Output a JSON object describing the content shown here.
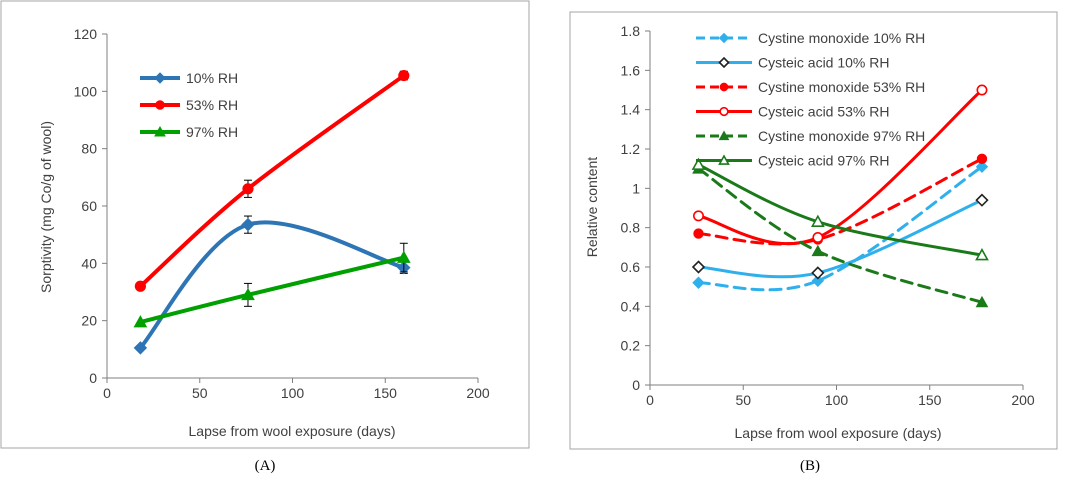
{
  "chart_data": [
    {
      "type": "line",
      "panel_label": "(A)",
      "xlabel": "Lapse from wool exposure (days)",
      "ylabel": "Sorptivity (mg Co/g of wool)",
      "xlim": [
        0,
        200
      ],
      "ylim": [
        0,
        120
      ],
      "xticks": [
        0,
        50,
        100,
        150,
        200
      ],
      "yticks": [
        0,
        20,
        40,
        60,
        80,
        100,
        120
      ],
      "series": [
        {
          "name": "10% RH",
          "color": "#2e75b6",
          "marker": "diamond",
          "x": [
            18,
            76,
            160
          ],
          "y": [
            10.5,
            53.5,
            38.5
          ],
          "err": [
            0,
            3,
            2
          ]
        },
        {
          "name": "53% RH",
          "color": "#ff0000",
          "marker": "circle",
          "x": [
            18,
            76,
            160
          ],
          "y": [
            32,
            66,
            105.5
          ],
          "err": [
            0,
            3,
            1.5
          ]
        },
        {
          "name": "97% RH",
          "color": "#00a000",
          "marker": "triangle",
          "x": [
            18,
            76,
            160
          ],
          "y": [
            19.5,
            29,
            42
          ],
          "err": [
            0,
            4,
            5
          ]
        }
      ]
    },
    {
      "type": "line",
      "panel_label": "(B)",
      "xlabel": "Lapse from wool exposure (days)",
      "ylabel": "Relative content",
      "xlim": [
        0,
        200
      ],
      "ylim": [
        0,
        1.8
      ],
      "xticks": [
        0,
        50,
        100,
        150,
        200
      ],
      "yticks": [
        0,
        0.2,
        0.4,
        0.6,
        0.8,
        1,
        1.2,
        1.4,
        1.6,
        1.8
      ],
      "series": [
        {
          "name": "Cystine monoxide 10% RH",
          "color": "#2fb0ec",
          "dashed": true,
          "marker": "diamond-filled",
          "x": [
            26,
            90,
            178
          ],
          "y": [
            0.52,
            0.53,
            1.11
          ]
        },
        {
          "name": "Cysteic acid 10% RH",
          "color": "#2fb0ec",
          "dashed": false,
          "marker": "diamond-open",
          "x": [
            26,
            90,
            178
          ],
          "y": [
            0.6,
            0.57,
            0.94
          ]
        },
        {
          "name": "Cystine monoxide 53% RH",
          "color": "#ff0000",
          "dashed": true,
          "marker": "circle-filled",
          "x": [
            26,
            90,
            178
          ],
          "y": [
            0.77,
            0.74,
            1.15
          ]
        },
        {
          "name": "Cysteic acid 53% RH",
          "color": "#ff0000",
          "dashed": false,
          "marker": "circle-open",
          "x": [
            26,
            90,
            178
          ],
          "y": [
            0.86,
            0.75,
            1.5
          ]
        },
        {
          "name": "Cystine monoxide 97% RH",
          "color": "#1a7a1a",
          "dashed": true,
          "marker": "triangle-filled",
          "x": [
            26,
            90,
            178
          ],
          "y": [
            1.1,
            0.68,
            0.42
          ]
        },
        {
          "name": "Cysteic acid 97% RH",
          "color": "#1a7a1a",
          "dashed": false,
          "marker": "triangle-open",
          "x": [
            26,
            90,
            178
          ],
          "y": [
            1.12,
            0.83,
            0.66
          ]
        }
      ]
    }
  ]
}
